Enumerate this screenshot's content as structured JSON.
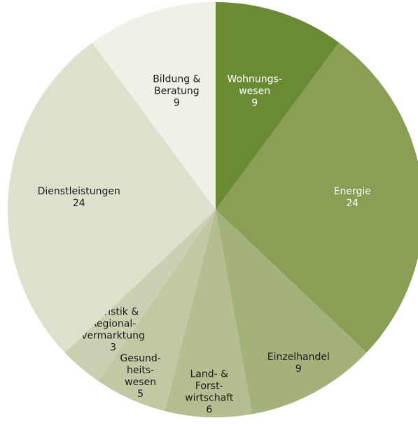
{
  "chart_data": {
    "type": "pie",
    "categories": [
      "Wohnungs-\nwesen",
      "Energie",
      "Einzelhandel",
      "Land- &\nForst-\nwirtschaft",
      "Gesund-\nheits-\nwesen",
      "Touristik &\nRegional-\nvermarktung",
      "Dienstleistungen",
      "Bildung &\nBeratung"
    ],
    "values": [
      9,
      24,
      9,
      6,
      5,
      3,
      24,
      9
    ],
    "colors": [
      "#6b8a34",
      "#8a9f56",
      "#a3b17a",
      "#b5bd91",
      "#c3c8a4",
      "#ccd0b2",
      "#dfe0cc",
      "#f1f0e7"
    ],
    "text_colors": [
      "#ffffff",
      "#ffffff",
      "#1a1a1a",
      "#1a1a1a",
      "#1a1a1a",
      "#1a1a1a",
      "#1a1a1a",
      "#1a1a1a"
    ]
  }
}
